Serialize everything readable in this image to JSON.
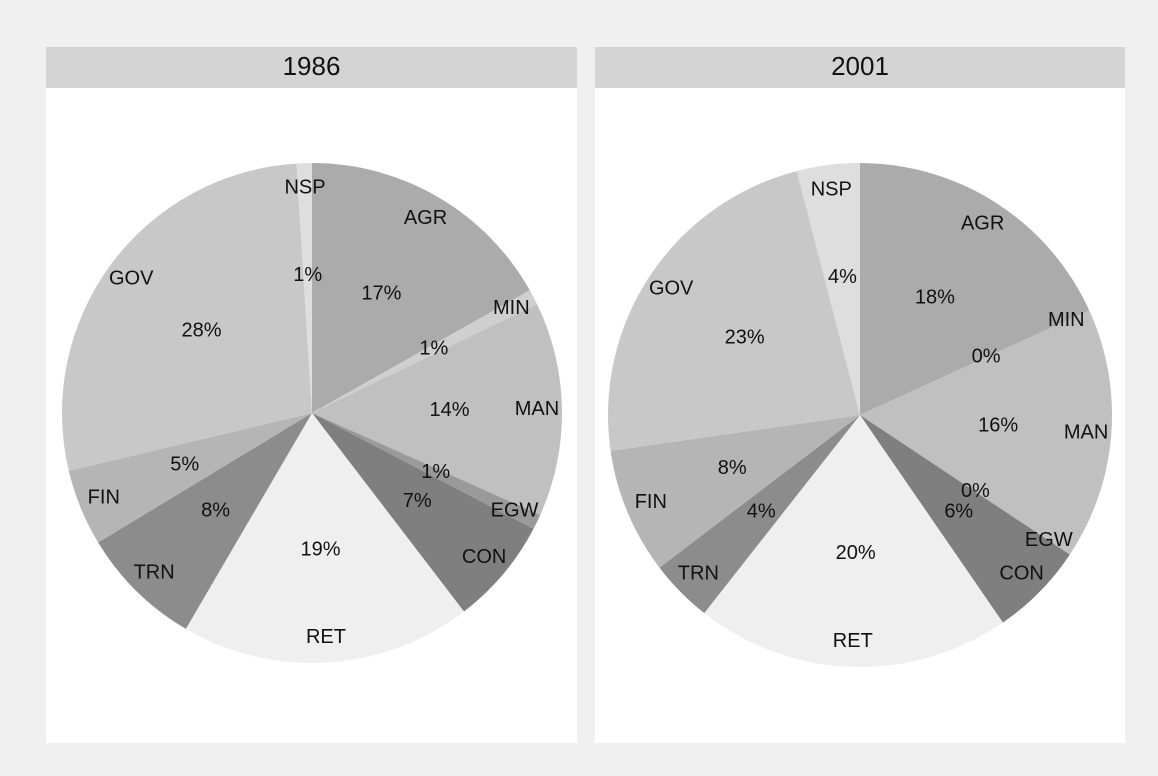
{
  "chart_data": [
    {
      "type": "pie",
      "title": "1986",
      "categories": [
        "AGR",
        "MIN",
        "MAN",
        "EGW",
        "CON",
        "RET",
        "TRN",
        "FIN",
        "GOV",
        "NSP"
      ],
      "values": [
        17,
        1,
        14,
        1,
        7,
        19,
        8,
        5,
        28,
        1
      ],
      "value_labels": [
        "17%",
        "1%",
        "14%",
        "1%",
        "7%",
        "19%",
        "8%",
        "5%",
        "28%",
        "1%"
      ],
      "colors": [
        "#ababab",
        "#cfcfcf",
        "#c0c0c0",
        "#9a9a9a",
        "#7f7f7f",
        "#efefef",
        "#8c8c8c",
        "#b5b5b5",
        "#c8c8c8",
        "#dedede"
      ]
    },
    {
      "type": "pie",
      "title": "2001",
      "categories": [
        "AGR",
        "MIN",
        "MAN",
        "EGW",
        "CON",
        "RET",
        "TRN",
        "FIN",
        "GOV",
        "NSP"
      ],
      "values": [
        18,
        0,
        16,
        0,
        6,
        20,
        4,
        8,
        23,
        4
      ],
      "value_labels": [
        "18%",
        "0%",
        "16%",
        "0%",
        "6%",
        "20%",
        "4%",
        "8%",
        "23%",
        "4%"
      ],
      "colors": [
        "#ababab",
        "#cfcfcf",
        "#c0c0c0",
        "#9a9a9a",
        "#7f7f7f",
        "#efefef",
        "#8c8c8c",
        "#b5b5b5",
        "#c8c8c8",
        "#dedede"
      ]
    }
  ]
}
